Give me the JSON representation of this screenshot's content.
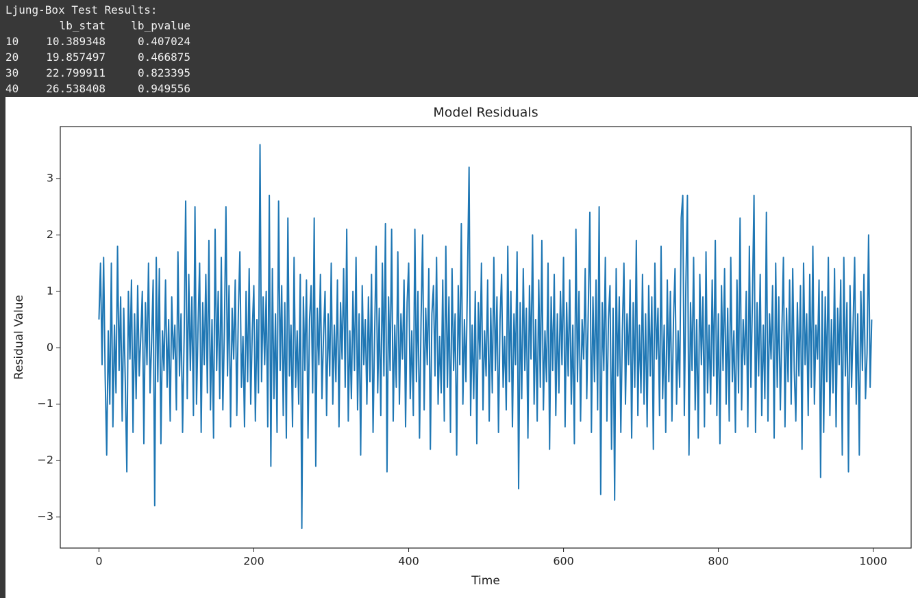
{
  "console": {
    "title": "Ljung-Box Test Results:",
    "columns": [
      "lb_stat",
      "lb_pvalue"
    ],
    "rows": [
      [
        "10",
        "10.389348",
        "0.407024"
      ],
      [
        "20",
        "19.857497",
        "0.466875"
      ],
      [
        "30",
        "22.799911",
        "0.823395"
      ],
      [
        "40",
        "26.538408",
        "0.949556"
      ]
    ]
  },
  "chart_data": {
    "type": "line",
    "title": "Model Residuals",
    "x_label": "Time",
    "y_label": "Residual Value",
    "color": "#1f77b4",
    "xlim": [
      -49.95,
      1048.95
    ],
    "ylim": [
      -3.55,
      3.92
    ],
    "xticks": [
      0,
      200,
      400,
      600,
      800,
      1000
    ],
    "yticks": [
      {
        "value": -3,
        "label": "−3"
      },
      {
        "value": -2,
        "label": "−2"
      },
      {
        "value": -1,
        "label": "−1"
      },
      0,
      1,
      2,
      3
    ],
    "x": [
      0,
      2,
      4,
      6,
      8,
      10,
      12,
      14,
      16,
      18,
      20,
      22,
      24,
      26,
      28,
      30,
      32,
      34,
      36,
      38,
      40,
      42,
      44,
      46,
      48,
      50,
      52,
      54,
      56,
      58,
      60,
      62,
      64,
      66,
      68,
      70,
      72,
      74,
      76,
      78,
      80,
      82,
      84,
      86,
      88,
      90,
      92,
      94,
      96,
      98,
      100,
      102,
      104,
      106,
      108,
      110,
      112,
      114,
      116,
      118,
      120,
      122,
      124,
      126,
      128,
      130,
      132,
      134,
      136,
      138,
      140,
      142,
      144,
      146,
      148,
      150,
      152,
      154,
      156,
      158,
      160,
      162,
      164,
      166,
      168,
      170,
      172,
      174,
      176,
      178,
      180,
      182,
      184,
      186,
      188,
      190,
      192,
      194,
      196,
      198,
      200,
      202,
      204,
      206,
      208,
      210,
      212,
      214,
      216,
      218,
      220,
      222,
      224,
      226,
      228,
      230,
      232,
      234,
      236,
      238,
      240,
      242,
      244,
      246,
      248,
      250,
      252,
      254,
      256,
      258,
      260,
      262,
      264,
      266,
      268,
      270,
      272,
      274,
      276,
      278,
      280,
      282,
      284,
      286,
      288,
      290,
      292,
      294,
      296,
      298,
      300,
      302,
      304,
      306,
      308,
      310,
      312,
      314,
      316,
      318,
      320,
      322,
      324,
      326,
      328,
      330,
      332,
      334,
      336,
      338,
      340,
      342,
      344,
      346,
      348,
      350,
      352,
      354,
      356,
      358,
      360,
      362,
      364,
      366,
      368,
      370,
      372,
      374,
      376,
      378,
      380,
      382,
      384,
      386,
      388,
      390,
      392,
      394,
      396,
      398,
      400,
      402,
      404,
      406,
      408,
      410,
      412,
      414,
      416,
      418,
      420,
      422,
      424,
      426,
      428,
      430,
      432,
      434,
      436,
      438,
      440,
      442,
      444,
      446,
      448,
      450,
      452,
      454,
      456,
      458,
      460,
      462,
      464,
      466,
      468,
      470,
      472,
      474,
      476,
      478,
      480,
      482,
      484,
      486,
      488,
      490,
      492,
      494,
      496,
      498,
      500,
      502,
      504,
      506,
      508,
      510,
      512,
      514,
      516,
      518,
      520,
      522,
      524,
      526,
      528,
      530,
      532,
      534,
      536,
      538,
      540,
      542,
      544,
      546,
      548,
      550,
      552,
      554,
      556,
      558,
      560,
      562,
      564,
      566,
      568,
      570,
      572,
      574,
      576,
      578,
      580,
      582,
      584,
      586,
      588,
      590,
      592,
      594,
      596,
      598,
      600,
      602,
      604,
      606,
      608,
      610,
      612,
      614,
      616,
      618,
      620,
      622,
      624,
      626,
      628,
      630,
      632,
      634,
      636,
      638,
      640,
      642,
      644,
      646,
      648,
      650,
      652,
      654,
      656,
      658,
      660,
      662,
      664,
      666,
      668,
      670,
      672,
      674,
      676,
      678,
      680,
      682,
      684,
      686,
      688,
      690,
      692,
      694,
      696,
      698,
      700,
      702,
      704,
      706,
      708,
      710,
      712,
      714,
      716,
      718,
      720,
      722,
      724,
      726,
      728,
      730,
      732,
      734,
      736,
      738,
      740,
      742,
      744,
      746,
      748,
      750,
      752,
      754,
      756,
      758,
      760,
      762,
      764,
      766,
      768,
      770,
      772,
      774,
      776,
      778,
      780,
      782,
      784,
      786,
      788,
      790,
      792,
      794,
      796,
      798,
      800,
      802,
      804,
      806,
      808,
      810,
      812,
      814,
      816,
      818,
      820,
      822,
      824,
      826,
      828,
      830,
      832,
      834,
      836,
      838,
      840,
      842,
      844,
      846,
      848,
      850,
      852,
      854,
      856,
      858,
      860,
      862,
      864,
      866,
      868,
      870,
      872,
      874,
      876,
      878,
      880,
      882,
      884,
      886,
      888,
      890,
      892,
      894,
      896,
      898,
      900,
      902,
      904,
      906,
      908,
      910,
      912,
      914,
      916,
      918,
      920,
      922,
      924,
      926,
      928,
      930,
      932,
      934,
      936,
      938,
      940,
      942,
      944,
      946,
      948,
      950,
      952,
      954,
      956,
      958,
      960,
      962,
      964,
      966,
      968,
      970,
      972,
      974,
      976,
      978,
      980,
      982,
      984,
      986,
      988,
      990,
      992,
      994,
      996,
      998
    ],
    "values": [
      0.5,
      1.5,
      -0.3,
      1.6,
      -0.5,
      -1.9,
      0.3,
      -1.0,
      1.5,
      -1.4,
      0.4,
      -0.8,
      1.8,
      -0.4,
      0.9,
      -1.3,
      0.7,
      -0.6,
      -2.2,
      1.0,
      -0.2,
      1.2,
      -1.5,
      0.6,
      -0.9,
      1.1,
      -0.5,
      0.2,
      1.0,
      -1.7,
      0.8,
      -0.3,
      1.5,
      -0.8,
      0.1,
      1.2,
      -2.8,
      1.6,
      -0.6,
      1.4,
      -1.7,
      0.3,
      -0.4,
      1.2,
      -0.7,
      0.5,
      -1.3,
      0.9,
      -0.2,
      0.4,
      -1.1,
      1.7,
      -0.5,
      0.6,
      -1.5,
      0.2,
      2.6,
      -0.9,
      1.3,
      -0.4,
      0.9,
      -1.2,
      2.5,
      -1.0,
      0.4,
      1.5,
      -1.5,
      0.8,
      -0.3,
      1.3,
      -0.8,
      1.9,
      -1.1,
      0.5,
      -1.6,
      2.1,
      -0.4,
      1.0,
      -0.9,
      1.6,
      -1.1,
      0.3,
      2.5,
      -0.5,
      1.1,
      -1.4,
      0.7,
      -0.2,
      1.2,
      -1.2,
      0.6,
      1.7,
      -0.7,
      0.2,
      -1.4,
      1.0,
      -0.6,
      1.4,
      -1.0,
      0.3,
      1.1,
      -1.3,
      0.5,
      -0.8,
      3.6,
      -0.6,
      0.9,
      -0.3,
      1.0,
      -1.4,
      2.7,
      -2.1,
      1.4,
      -0.9,
      0.6,
      -1.5,
      2.6,
      -0.4,
      1.1,
      -1.2,
      0.8,
      -1.6,
      2.3,
      -0.5,
      0.4,
      -1.4,
      1.6,
      -0.7,
      0.3,
      -1.0,
      1.3,
      -3.2,
      0.9,
      -0.4,
      1.2,
      -1.6,
      0.5,
      1.1,
      -0.8,
      2.3,
      -2.1,
      0.7,
      -0.3,
      1.3,
      -0.9,
      0.2,
      1.0,
      -1.2,
      0.6,
      -0.5,
      1.5,
      -1.0,
      0.4,
      -0.6,
      1.2,
      -1.4,
      0.8,
      -0.2,
      1.4,
      -0.7,
      2.1,
      -1.3,
      0.3,
      -0.9,
      1.0,
      -0.4,
      1.6,
      -1.1,
      0.6,
      -1.9,
      1.1,
      -0.3,
      0.5,
      -1.0,
      0.9,
      -0.6,
      1.3,
      -1.5,
      0.2,
      1.8,
      -0.8,
      0.7,
      -1.2,
      1.5,
      -0.5,
      2.2,
      -2.2,
      0.9,
      -0.4,
      2.1,
      -1.3,
      0.4,
      -0.7,
      1.7,
      -1.0,
      0.6,
      -0.2,
      1.2,
      -1.4,
      0.8,
      1.5,
      -0.9,
      0.3,
      -1.2,
      2.1,
      -0.6,
      1.0,
      -1.6,
      0.5,
      2.0,
      -1.1,
      0.7,
      -0.3,
      1.4,
      -1.8,
      0.6,
      1.1,
      -0.5,
      1.6,
      -1.0,
      0.2,
      -0.8,
      1.2,
      -1.3,
      1.8,
      -0.7,
      0.9,
      -1.5,
      1.4,
      -0.4,
      0.6,
      -1.9,
      1.1,
      -0.3,
      2.2,
      -1.0,
      0.5,
      -0.6,
      1.3,
      3.2,
      -1.2,
      0.4,
      -0.9,
      1.0,
      -1.7,
      0.8,
      -0.2,
      1.5,
      -1.1,
      0.3,
      -0.5,
      1.2,
      -1.3,
      0.7,
      -0.8,
      1.6,
      -0.4,
      0.9,
      -1.5,
      0.5,
      1.3,
      -0.7,
      0.2,
      -1.1,
      1.8,
      -0.6,
      1.0,
      -1.4,
      0.6,
      -0.3,
      1.7,
      -2.5,
      0.8,
      -0.9,
      1.4,
      -0.4,
      0.7,
      -1.6,
      1.1,
      -0.2,
      2.0,
      -1.0,
      0.5,
      -1.3,
      1.2,
      -0.7,
      1.9,
      -1.1,
      0.3,
      -0.6,
      1.5,
      -1.8,
      0.9,
      -0.4,
      1.3,
      -1.2,
      0.6,
      -0.8,
      1.0,
      -0.3,
      1.6,
      -1.4,
      0.8,
      -0.5,
      1.2,
      -1.0,
      0.4,
      -1.7,
      2.1,
      -0.6,
      1.0,
      -1.3,
      0.5,
      -0.2,
      1.4,
      -0.9,
      0.7,
      2.4,
      -1.5,
      0.9,
      -0.6,
      1.2,
      -1.1,
      2.5,
      -2.6,
      0.8,
      -0.4,
      1.6,
      -1.3,
      0.5,
      1.1,
      -1.8,
      0.7,
      -2.7,
      1.4,
      -0.5,
      0.9,
      -1.5,
      0.3,
      1.5,
      -1.0,
      0.6,
      -0.3,
      1.2,
      -1.6,
      0.8,
      -0.7,
      1.9,
      -1.2,
      0.4,
      -0.8,
      1.3,
      -1.0,
      0.6,
      -1.4,
      1.1,
      -0.5,
      0.9,
      -1.8,
      1.5,
      -0.2,
      0.7,
      -1.2,
      1.8,
      -0.9,
      0.4,
      -1.5,
      1.2,
      -0.6,
      1.0,
      -1.3,
      0.5,
      1.4,
      -1.0,
      0.3,
      -0.7,
      2.3,
      2.7,
      -1.2,
      1.1,
      2.7,
      -1.9,
      0.8,
      -0.4,
      1.6,
      -1.1,
      0.5,
      -1.6,
      1.3,
      -0.3,
      0.9,
      -1.4,
      1.7,
      -0.8,
      0.4,
      -1.0,
      1.2,
      -0.5,
      1.9,
      -1.2,
      0.6,
      -1.7,
      1.1,
      -0.4,
      1.4,
      -1.0,
      0.7,
      -1.3,
      1.6,
      -0.6,
      0.3,
      -1.5,
      1.2,
      -0.8,
      2.3,
      -1.1,
      0.5,
      -0.3,
      1.0,
      -1.4,
      1.8,
      -0.7,
      0.9,
      2.7,
      -1.5,
      0.8,
      -0.5,
      1.3,
      -1.2,
      0.4,
      -0.9,
      2.4,
      -1.3,
      0.6,
      -0.2,
      1.1,
      -1.6,
      1.5,
      -0.7,
      0.9,
      -1.1,
      0.3,
      1.6,
      -1.4,
      0.7,
      -0.6,
      1.2,
      -1.0,
      1.4,
      -0.4,
      -1.3,
      0.8,
      -0.5,
      1.1,
      -1.8,
      1.5,
      -0.3,
      0.6,
      -1.2,
      1.3,
      -0.7,
      1.8,
      -1.0,
      0.4,
      -0.2,
      1.2,
      -2.3,
      1.0,
      -1.5,
      0.9,
      -0.6,
      1.6,
      -1.2,
      0.5,
      -0.8,
      1.4,
      -1.4,
      0.7,
      -0.3,
      1.2,
      -1.9,
      1.6,
      -0.5,
      0.8,
      -2.2,
      1.1,
      -0.7,
      0.4,
      1.6,
      -1.0,
      0.6,
      -1.9,
      1.0,
      -0.4,
      1.3,
      -0.9,
      -0.1,
      2.0,
      -0.7,
      0.5
    ]
  }
}
